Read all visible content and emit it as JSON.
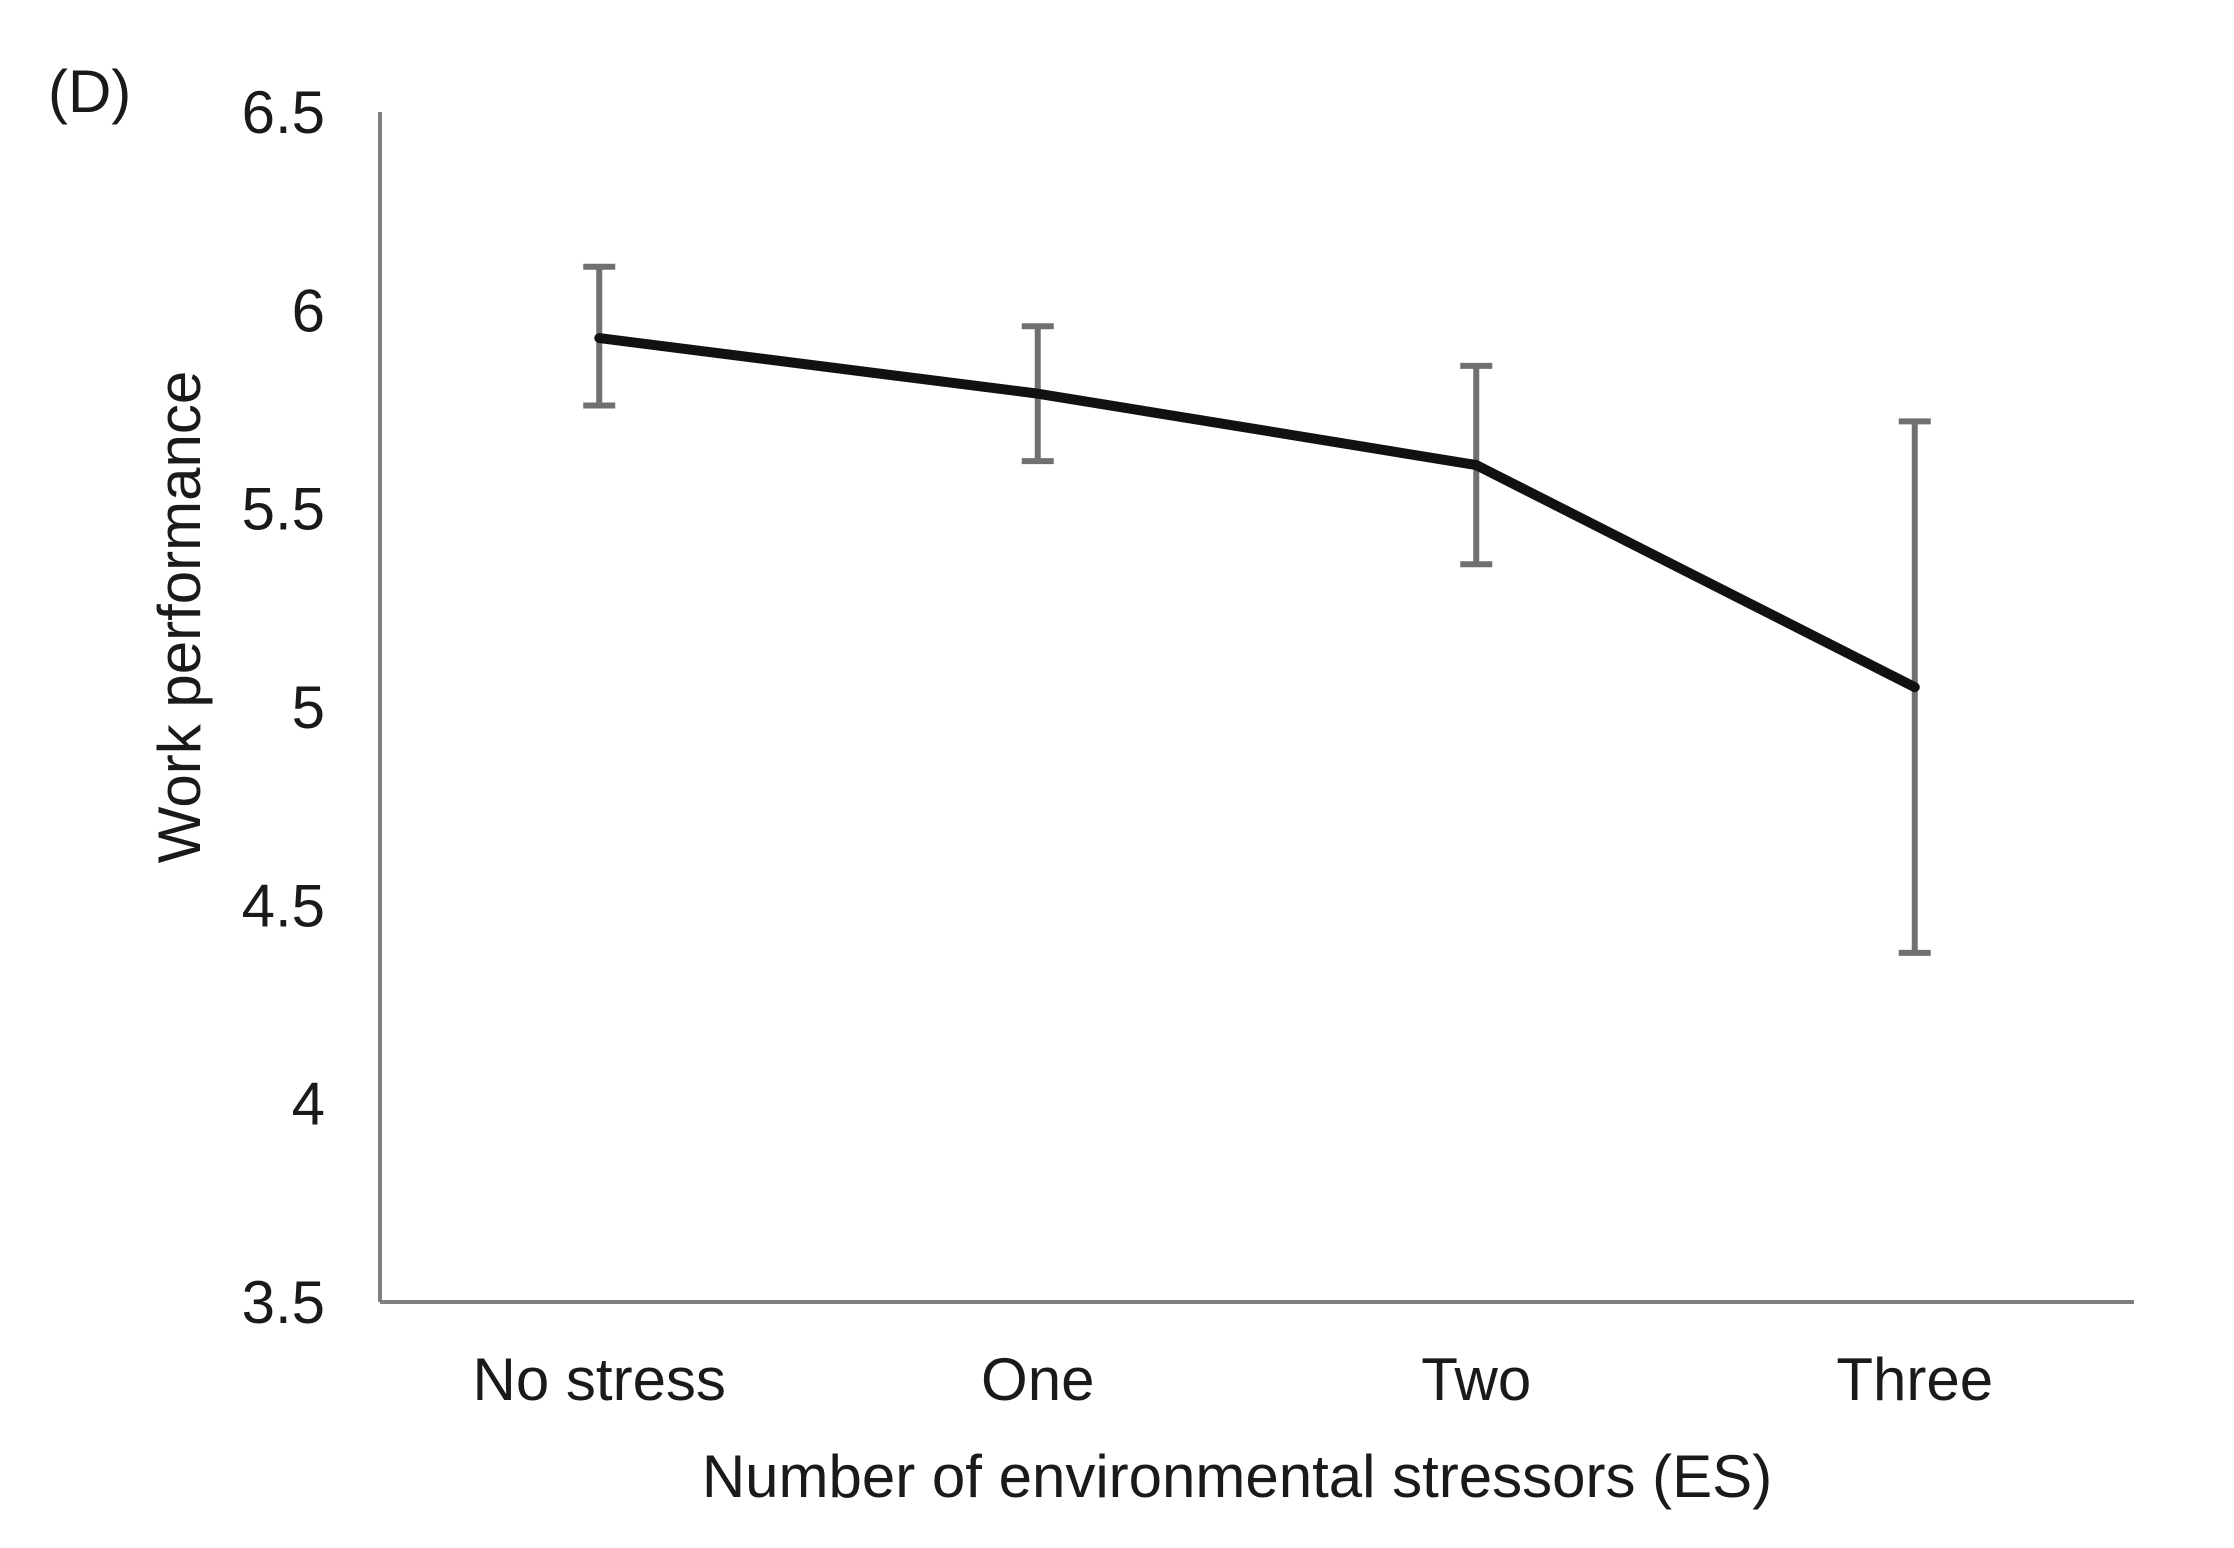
{
  "panel_label": "(D)",
  "chart_data": {
    "type": "line",
    "title": "",
    "xlabel": "Number of environmental stressors (ES)",
    "ylabel": "Work performance",
    "categories": [
      "No stress",
      "One",
      "Two",
      "Three"
    ],
    "ylim": [
      3.5,
      6.5
    ],
    "yticks": [
      3.5,
      4,
      4.5,
      5,
      5.5,
      6,
      6.5
    ],
    "ytick_labels": [
      "3.5",
      "4",
      "4.5",
      "5",
      "5.5",
      "6",
      "6.5"
    ],
    "series": [
      {
        "values": [
          5.93,
          5.79,
          5.61,
          5.05
        ],
        "error_upper": [
          6.11,
          5.96,
          5.86,
          5.72
        ],
        "error_lower": [
          5.76,
          5.62,
          5.36,
          4.38
        ]
      }
    ],
    "grid": false,
    "line_color": "#111111",
    "error_bar_color": "#707070",
    "axis_color": "#808080"
  }
}
